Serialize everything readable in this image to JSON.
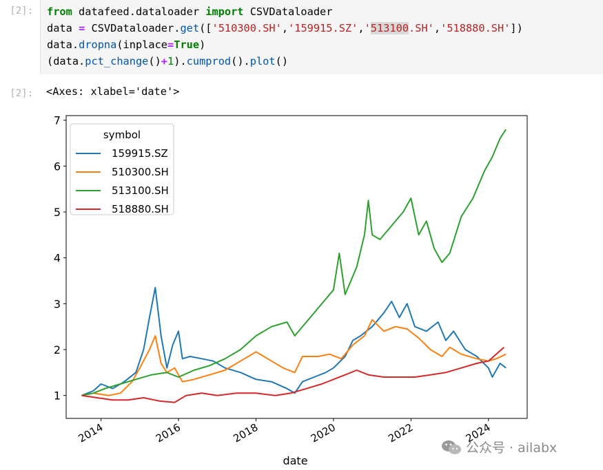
{
  "cell": {
    "input_prompt": "[2]:",
    "output_prompt": "[2]:",
    "code": {
      "l1": {
        "from": "from",
        "module": " datafeed.dataloader ",
        "import": "import",
        "name": " CSVDataloader"
      },
      "l2": {
        "var": "data ",
        "eq": "=",
        "rest1": " CSVDataloader.",
        "get": "get",
        "open": "([",
        "s1": "'510300.SH'",
        "c1": ",",
        "s2": "'159915.SZ'",
        "c2": ",",
        "q3a": "'",
        "s3": "513100",
        "q3b": ".SH'",
        "c3": ",",
        "s4": "'518880.SH'",
        "close": "])"
      },
      "l3": {
        "pre": "data.",
        "fn": "dropna",
        "open": "(inplace",
        "eq": "=",
        "val": "True",
        "close": ")"
      },
      "l4": {
        "open": "(data.",
        "fn1": "pct_change",
        "p1": "()",
        "plus": "+",
        "one": "1",
        "p2": ").",
        "fn2": "cumprod",
        "p3": "().",
        "fn3": "plot",
        "p4": "()"
      }
    },
    "output_text": "<Axes: xlabel='date'>"
  },
  "watermark": "公众号 · ailabx",
  "chart_data": {
    "type": "line",
    "xlabel": "date",
    "ylabel": "",
    "xlim": [
      2013.1,
      2025.0
    ],
    "ylim": [
      0.5,
      7.1
    ],
    "grid": false,
    "legend_title": "symbol",
    "legend_placement": "top-left",
    "x_ticks": [
      "2014",
      "2016",
      "2018",
      "2020",
      "2022",
      "2024"
    ],
    "x_tick_values": [
      2014,
      2016,
      2018,
      2020,
      2022,
      2024
    ],
    "y_ticks": [
      1,
      2,
      3,
      4,
      5,
      6,
      7
    ],
    "series": [
      {
        "name": "159915.SZ",
        "color": "#1f77b4",
        "points": [
          [
            2013.5,
            1.0
          ],
          [
            2013.8,
            1.1
          ],
          [
            2014.0,
            1.25
          ],
          [
            2014.3,
            1.15
          ],
          [
            2014.6,
            1.3
          ],
          [
            2014.9,
            1.5
          ],
          [
            2015.1,
            2.0
          ],
          [
            2015.25,
            2.7
          ],
          [
            2015.4,
            3.35
          ],
          [
            2015.55,
            2.3
          ],
          [
            2015.7,
            1.6
          ],
          [
            2015.85,
            2.1
          ],
          [
            2016.0,
            2.4
          ],
          [
            2016.1,
            1.8
          ],
          [
            2016.3,
            1.85
          ],
          [
            2016.6,
            1.8
          ],
          [
            2016.9,
            1.75
          ],
          [
            2017.2,
            1.6
          ],
          [
            2017.6,
            1.5
          ],
          [
            2018.0,
            1.35
          ],
          [
            2018.4,
            1.3
          ],
          [
            2018.8,
            1.15
          ],
          [
            2019.0,
            1.05
          ],
          [
            2019.2,
            1.3
          ],
          [
            2019.5,
            1.4
          ],
          [
            2019.8,
            1.5
          ],
          [
            2020.0,
            1.6
          ],
          [
            2020.3,
            1.85
          ],
          [
            2020.5,
            2.2
          ],
          [
            2020.7,
            2.3
          ],
          [
            2021.0,
            2.5
          ],
          [
            2021.3,
            2.8
          ],
          [
            2021.5,
            3.05
          ],
          [
            2021.7,
            2.7
          ],
          [
            2021.9,
            3.0
          ],
          [
            2022.1,
            2.5
          ],
          [
            2022.4,
            2.4
          ],
          [
            2022.7,
            2.6
          ],
          [
            2022.9,
            2.2
          ],
          [
            2023.1,
            2.4
          ],
          [
            2023.4,
            2.0
          ],
          [
            2023.7,
            1.85
          ],
          [
            2024.0,
            1.6
          ],
          [
            2024.1,
            1.4
          ],
          [
            2024.3,
            1.7
          ],
          [
            2024.45,
            1.6
          ]
        ]
      },
      {
        "name": "510300.SH",
        "color": "#ff7f0e",
        "points": [
          [
            2013.5,
            1.0
          ],
          [
            2013.8,
            1.05
          ],
          [
            2014.2,
            1.0
          ],
          [
            2014.5,
            1.05
          ],
          [
            2014.8,
            1.3
          ],
          [
            2015.0,
            1.6
          ],
          [
            2015.25,
            2.0
          ],
          [
            2015.4,
            2.3
          ],
          [
            2015.55,
            1.7
          ],
          [
            2015.7,
            1.5
          ],
          [
            2015.9,
            1.6
          ],
          [
            2016.1,
            1.3
          ],
          [
            2016.4,
            1.35
          ],
          [
            2016.8,
            1.45
          ],
          [
            2017.2,
            1.55
          ],
          [
            2017.6,
            1.75
          ],
          [
            2018.0,
            1.95
          ],
          [
            2018.3,
            1.8
          ],
          [
            2018.7,
            1.6
          ],
          [
            2019.0,
            1.5
          ],
          [
            2019.2,
            1.85
          ],
          [
            2019.6,
            1.85
          ],
          [
            2019.9,
            1.9
          ],
          [
            2020.2,
            1.8
          ],
          [
            2020.5,
            2.1
          ],
          [
            2020.8,
            2.3
          ],
          [
            2021.0,
            2.65
          ],
          [
            2021.3,
            2.4
          ],
          [
            2021.6,
            2.5
          ],
          [
            2021.9,
            2.45
          ],
          [
            2022.2,
            2.25
          ],
          [
            2022.5,
            2.0
          ],
          [
            2022.8,
            1.85
          ],
          [
            2023.0,
            2.05
          ],
          [
            2023.3,
            1.9
          ],
          [
            2023.7,
            1.8
          ],
          [
            2024.0,
            1.75
          ],
          [
            2024.2,
            1.8
          ],
          [
            2024.45,
            1.9
          ]
        ]
      },
      {
        "name": "513100.SH",
        "color": "#2ca02c",
        "points": [
          [
            2013.5,
            1.0
          ],
          [
            2013.8,
            1.05
          ],
          [
            2014.1,
            1.15
          ],
          [
            2014.5,
            1.25
          ],
          [
            2014.9,
            1.35
          ],
          [
            2015.3,
            1.45
          ],
          [
            2015.7,
            1.5
          ],
          [
            2016.0,
            1.4
          ],
          [
            2016.4,
            1.55
          ],
          [
            2016.8,
            1.65
          ],
          [
            2017.2,
            1.8
          ],
          [
            2017.6,
            2.0
          ],
          [
            2018.0,
            2.3
          ],
          [
            2018.4,
            2.5
          ],
          [
            2018.8,
            2.6
          ],
          [
            2019.0,
            2.3
          ],
          [
            2019.3,
            2.6
          ],
          [
            2019.6,
            2.9
          ],
          [
            2020.0,
            3.3
          ],
          [
            2020.15,
            4.1
          ],
          [
            2020.3,
            3.2
          ],
          [
            2020.6,
            3.8
          ],
          [
            2020.8,
            4.5
          ],
          [
            2020.9,
            5.25
          ],
          [
            2021.0,
            4.5
          ],
          [
            2021.2,
            4.4
          ],
          [
            2021.5,
            4.7
          ],
          [
            2021.8,
            5.0
          ],
          [
            2022.0,
            5.3
          ],
          [
            2022.2,
            4.5
          ],
          [
            2022.4,
            4.8
          ],
          [
            2022.6,
            4.2
          ],
          [
            2022.8,
            3.9
          ],
          [
            2023.0,
            4.1
          ],
          [
            2023.3,
            4.9
          ],
          [
            2023.6,
            5.3
          ],
          [
            2023.9,
            5.9
          ],
          [
            2024.1,
            6.2
          ],
          [
            2024.3,
            6.6
          ],
          [
            2024.45,
            6.8
          ]
        ]
      },
      {
        "name": "518880.SH",
        "color": "#d62728",
        "points": [
          [
            2013.5,
            1.0
          ],
          [
            2013.9,
            0.95
          ],
          [
            2014.3,
            0.9
          ],
          [
            2014.7,
            0.9
          ],
          [
            2015.1,
            0.95
          ],
          [
            2015.5,
            0.88
          ],
          [
            2015.9,
            0.85
          ],
          [
            2016.2,
            1.0
          ],
          [
            2016.6,
            1.05
          ],
          [
            2017.0,
            1.0
          ],
          [
            2017.5,
            1.05
          ],
          [
            2018.0,
            1.05
          ],
          [
            2018.5,
            1.0
          ],
          [
            2018.9,
            1.05
          ],
          [
            2019.3,
            1.15
          ],
          [
            2019.7,
            1.25
          ],
          [
            2020.0,
            1.35
          ],
          [
            2020.3,
            1.45
          ],
          [
            2020.6,
            1.55
          ],
          [
            2020.9,
            1.45
          ],
          [
            2021.3,
            1.4
          ],
          [
            2021.7,
            1.4
          ],
          [
            2022.1,
            1.4
          ],
          [
            2022.5,
            1.45
          ],
          [
            2022.9,
            1.5
          ],
          [
            2023.3,
            1.6
          ],
          [
            2023.7,
            1.7
          ],
          [
            2024.0,
            1.75
          ],
          [
            2024.2,
            1.9
          ],
          [
            2024.4,
            2.05
          ]
        ]
      }
    ]
  }
}
